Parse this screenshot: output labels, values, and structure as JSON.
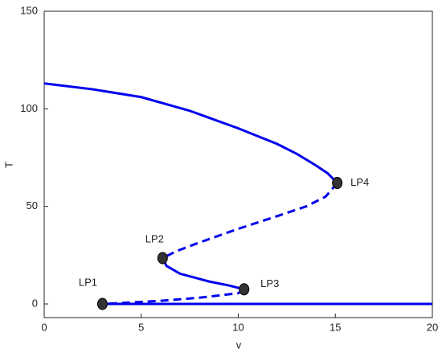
{
  "chart_data": {
    "type": "line",
    "xlabel": "v",
    "ylabel": "T",
    "xlim": [
      0,
      20
    ],
    "ylim": [
      -7,
      150
    ],
    "xticks": [
      0,
      5,
      10,
      15,
      20
    ],
    "yticks": [
      0,
      50,
      100,
      150
    ],
    "series": [
      {
        "color": "#0000ee",
        "style": "solid",
        "x": [
          0,
          2.5,
          5,
          7.5,
          10,
          12,
          13,
          14,
          14.6,
          15.1
        ],
        "values": [
          113,
          110,
          106,
          99,
          90,
          82,
          77,
          71,
          67,
          62
        ]
      },
      {
        "color": "#0000ee",
        "style": "dashed",
        "x": [
          15.1,
          14.5,
          13.5,
          12,
          10,
          8,
          6.8,
          6.1
        ],
        "values": [
          62,
          55,
          50,
          45,
          38.5,
          31.5,
          27,
          23.5
        ]
      },
      {
        "color": "#0000ee",
        "style": "solid",
        "x": [
          6.1,
          6.3,
          7,
          8.5,
          9.5,
          10.3
        ],
        "values": [
          23.5,
          19.5,
          15.5,
          11.5,
          9.5,
          7.5
        ]
      },
      {
        "color": "#0000ee",
        "style": "dashed",
        "x": [
          10.3,
          10,
          8,
          6,
          4,
          3
        ],
        "values": [
          7.5,
          5.5,
          3.2,
          1.6,
          0.5,
          0
        ]
      },
      {
        "color": "#0000ee",
        "style": "solid",
        "x": [
          3,
          20
        ],
        "values": [
          0,
          0
        ]
      }
    ],
    "points": {
      "color": "#333333",
      "labels": [
        "LP1",
        "LP2",
        "LP3",
        "LP4"
      ],
      "x": [
        3,
        6.1,
        10.3,
        15.1
      ],
      "values": [
        0,
        23.5,
        7.5,
        62
      ]
    }
  }
}
